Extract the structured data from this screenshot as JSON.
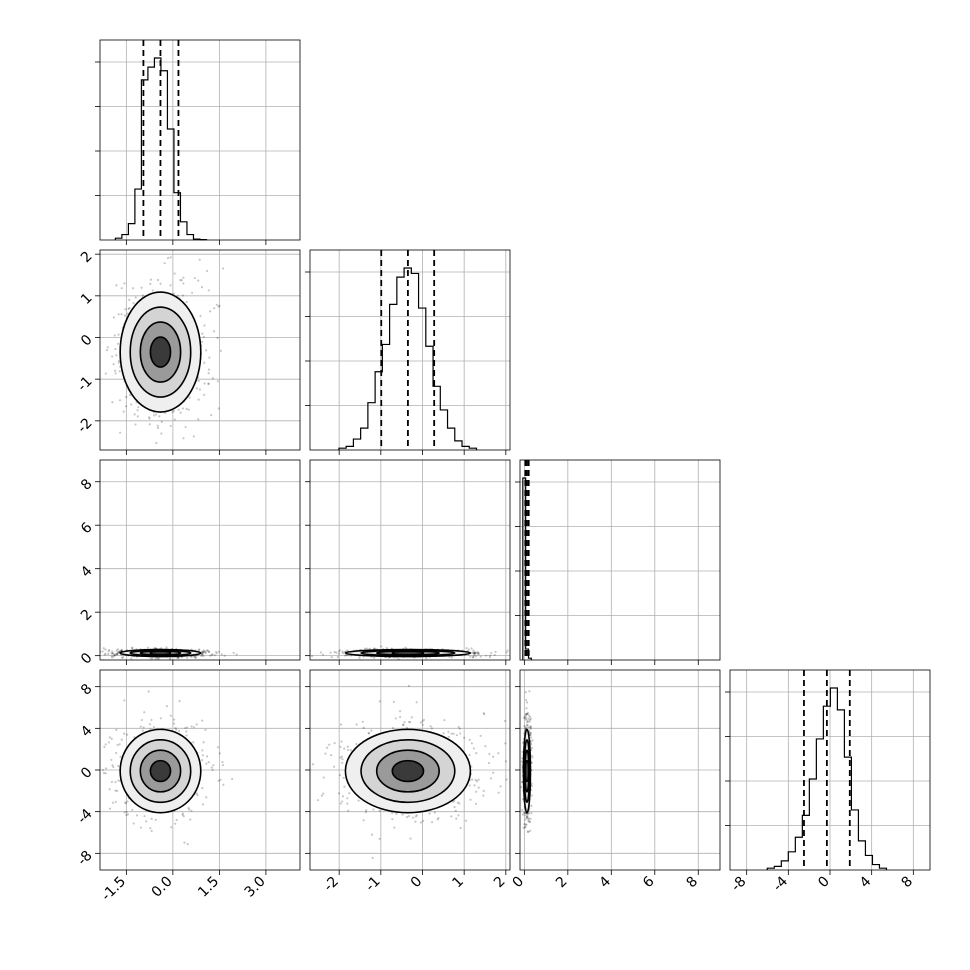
{
  "chart_data": {
    "type": "corner",
    "n_params": 4,
    "grid": true,
    "quantile_lines": "dashed",
    "x_ticks": [
      [
        "-1.5",
        "0.0",
        "1.5",
        "3.0"
      ],
      [
        "-2",
        "-1",
        "0",
        "1",
        "2"
      ],
      [
        "0",
        "2",
        "4",
        "6",
        "8"
      ],
      [
        "-8",
        "-4",
        "0",
        "4",
        "8"
      ]
    ],
    "y_ticks": {
      "row1": [
        "-2",
        "-1",
        "0",
        "1",
        "2"
      ],
      "row2": [
        "0",
        "2",
        "4",
        "6",
        "8"
      ],
      "row3": [
        "-8",
        "-4",
        "0",
        "4",
        "8"
      ]
    },
    "params": [
      {
        "range": [
          -2.35,
          4.1
        ],
        "median": -0.4,
        "q16": -0.95,
        "q84": 0.18,
        "hist": [
          0.01,
          0.03,
          0.09,
          0.28,
          0.88,
          0.95,
          1.0,
          0.93,
          0.61,
          0.26,
          0.1,
          0.03,
          0.005,
          0.002
        ]
      },
      {
        "range": [
          -2.7,
          2.1
        ],
        "median": -0.35,
        "q16": -0.99,
        "q84": 0.28,
        "hist": [
          0.01,
          0.02,
          0.06,
          0.12,
          0.26,
          0.43,
          0.58,
          0.8,
          0.95,
          1.0,
          0.97,
          0.78,
          0.57,
          0.35,
          0.22,
          0.12,
          0.05,
          0.02,
          0.01
        ]
      },
      {
        "range": [
          -0.2,
          9.0
        ],
        "median": 0.12,
        "q16": 0.05,
        "q84": 0.2,
        "hist": [
          1.0,
          0.06,
          0.01
        ]
      },
      {
        "range": [
          -9.6,
          9.6
        ],
        "median": -0.3,
        "q16": -2.5,
        "q84": 1.9,
        "hist": [
          0.01,
          0.02,
          0.05,
          0.1,
          0.18,
          0.3,
          0.5,
          0.72,
          0.9,
          1.0,
          0.88,
          0.62,
          0.33,
          0.16,
          0.08,
          0.03,
          0.01
        ]
      }
    ],
    "pairs": [
      {
        "x": 0,
        "y": 1,
        "center": [
          -0.4,
          -0.35
        ],
        "sx": 0.65,
        "sy": 0.72
      },
      {
        "x": 0,
        "y": 2,
        "center": [
          -0.4,
          0.12
        ],
        "sx": 0.65,
        "sy": 0.08
      },
      {
        "x": 1,
        "y": 2,
        "center": [
          -0.35,
          0.12
        ],
        "sx": 0.75,
        "sy": 0.08
      },
      {
        "x": 0,
        "y": 3,
        "center": [
          -0.4,
          -0.1
        ],
        "sx": 0.65,
        "sy": 2.0
      },
      {
        "x": 1,
        "y": 3,
        "center": [
          -0.35,
          -0.1
        ],
        "sx": 0.75,
        "sy": 2.0
      },
      {
        "x": 2,
        "y": 3,
        "center": [
          0.12,
          -0.1
        ],
        "sx": 0.08,
        "sy": 2.0
      }
    ]
  }
}
